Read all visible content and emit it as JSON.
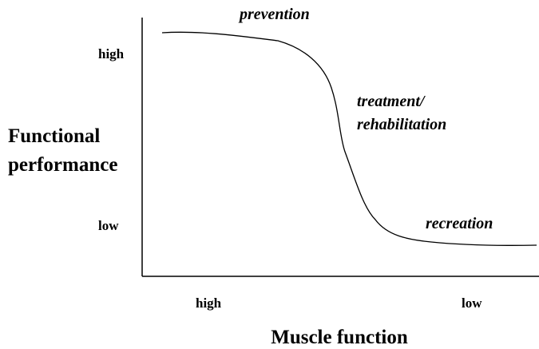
{
  "diagram": {
    "x_axis": {
      "title": "Muscle function",
      "labels": [
        "high",
        "low"
      ]
    },
    "y_axis": {
      "title_lines": [
        "Functional",
        "performance"
      ],
      "labels": [
        "high",
        "low"
      ]
    },
    "annotations": {
      "prevention": "prevention",
      "treatment_lines": [
        "treatment/",
        "rehabilitation"
      ],
      "recreation": "recreation"
    }
  }
}
